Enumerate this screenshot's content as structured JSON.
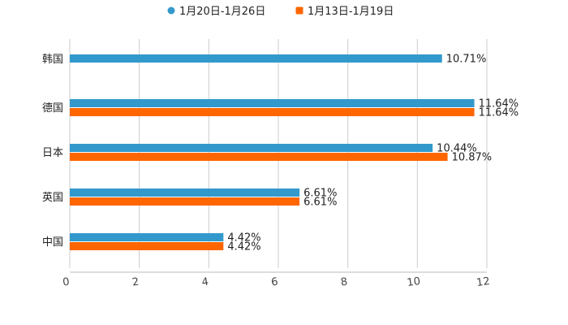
{
  "chart_data": {
    "type": "bar",
    "orientation": "horizontal",
    "title": "",
    "xlabel": "",
    "ylabel": "",
    "xlim": [
      0,
      12
    ],
    "xticks": [
      0,
      2,
      4,
      6,
      8,
      10,
      12
    ],
    "grid": true,
    "legend_position": "top-center",
    "categories": [
      "韩国",
      "德国",
      "日本",
      "英国",
      "中国"
    ],
    "series": [
      {
        "name": "1月20日-1月26日",
        "color": "#3399cc",
        "values": [
          10.71,
          11.64,
          10.44,
          6.61,
          4.42
        ],
        "labels": [
          "10.71%",
          "11.64%",
          "10.44%",
          "6.61%",
          "4.42%"
        ]
      },
      {
        "name": "1月13日-1月19日",
        "color": "#ff6600",
        "values": [
          null,
          11.64,
          10.87,
          6.61,
          4.42
        ],
        "labels": [
          "",
          "11.64%",
          "10.87%",
          "6.61%",
          "4.42%"
        ]
      }
    ]
  }
}
